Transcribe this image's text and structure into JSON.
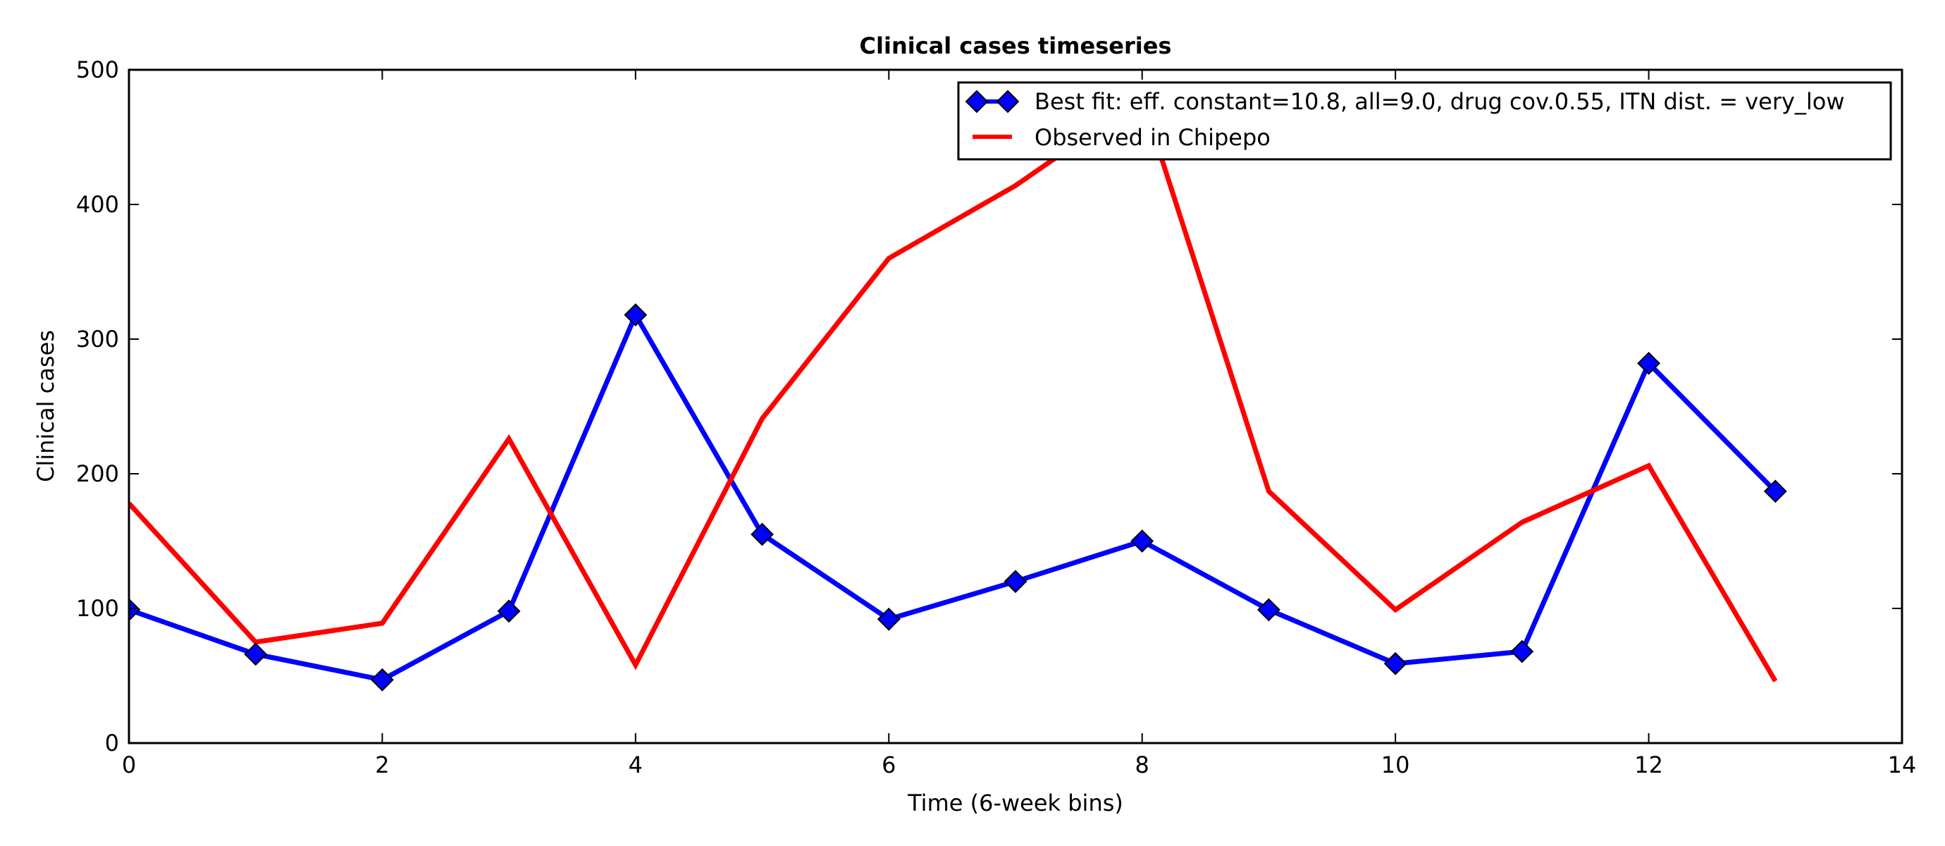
{
  "chart_data": {
    "type": "line",
    "title": "Clinical cases timeseries",
    "xlabel": "Time (6-week bins)",
    "ylabel": "Clinical cases",
    "xlim": [
      0,
      14
    ],
    "ylim": [
      0,
      500
    ],
    "xticks": [
      0,
      2,
      4,
      6,
      8,
      10,
      12,
      14
    ],
    "yticks": [
      0,
      100,
      200,
      300,
      400,
      500
    ],
    "grid": false,
    "legend_position": "top-right",
    "series": [
      {
        "name": "Best fit: eff. constant=10.8, all=9.0, drug cov.0.55, ITN dist. = very_low",
        "color": "#0000ff",
        "marker": "diamond",
        "x": [
          0,
          1,
          2,
          3,
          4,
          5,
          6,
          7,
          8,
          9,
          10,
          11,
          12,
          13
        ],
        "values": [
          99,
          66,
          47,
          98,
          318,
          155,
          92,
          120,
          150,
          99,
          59,
          68,
          282,
          187
        ]
      },
      {
        "name": "Observed in Chipepo",
        "color": "#ff0000",
        "marker": "none",
        "x": [
          0,
          1,
          2,
          3,
          4,
          5,
          6,
          7,
          8,
          9,
          10,
          11,
          12,
          13
        ],
        "values": [
          178,
          75,
          89,
          226,
          58,
          241,
          360,
          414,
          479,
          187,
          99,
          164,
          206,
          46
        ]
      }
    ]
  }
}
